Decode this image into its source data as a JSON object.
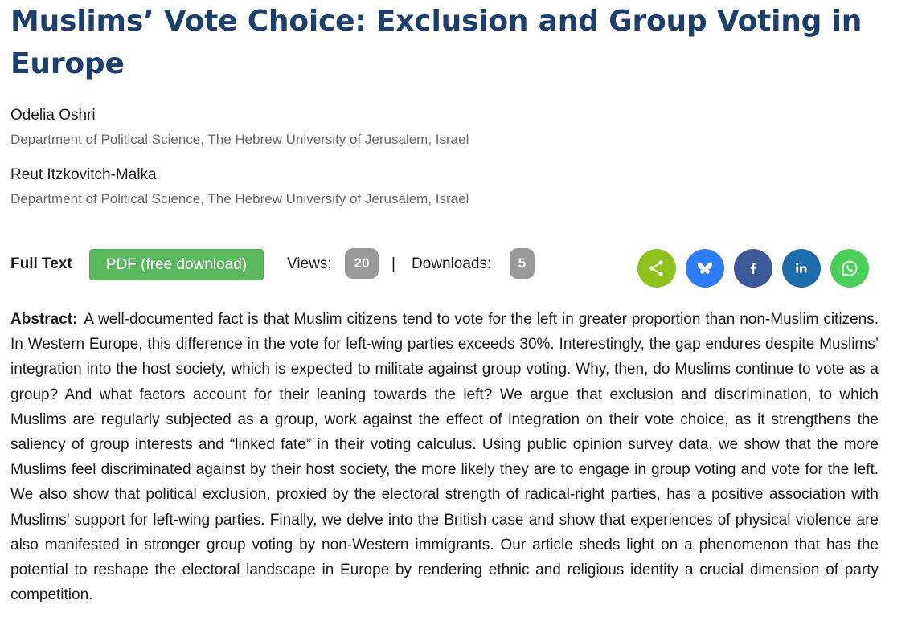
{
  "article": {
    "title": "Muslims’ Vote Choice: Exclusion and Group Voting in Europe",
    "authors": [
      {
        "name": "Odelia Oshri",
        "affiliation": "Department of Political Science, The Hebrew University of Jerusalem, Israel"
      },
      {
        "name": "Reut Itzkovitch-Malka",
        "affiliation": "Department of Political Science, The Hebrew University of Jerusalem, Israel"
      }
    ]
  },
  "fulltext": {
    "label": "Full Text",
    "pdf_button": "PDF (free download)",
    "views_label": "Views:",
    "views_count": "20",
    "separator": "|",
    "downloads_label": "Downloads:",
    "downloads_count": "5"
  },
  "share": {
    "buttons": [
      {
        "icon": "share-icon",
        "color": "#8ec21f"
      },
      {
        "icon": "bluesky-icon",
        "color": "#2f7df6"
      },
      {
        "icon": "facebook-icon",
        "color": "#3b5998"
      },
      {
        "icon": "linkedin-icon",
        "color": "#1e6cab"
      },
      {
        "icon": "whatsapp-icon",
        "color": "#4ccf5a"
      }
    ]
  },
  "abstract": {
    "label": "Abstract:",
    "text": "A well-documented fact is that Muslim citizens tend to vote for the left in greater proportion than non-Muslim citizens. In Western Europe, this difference in the vote for left-wing parties exceeds 30%. Interestingly, the gap endures despite Muslims’ integration into the host society, which is expected to militate against group voting. Why, then, do Muslims continue to vote as a group? And what factors account for their leaning towards the left? We argue that exclusion and discrimination, to which Muslims are regularly subjected as a group, work against the effect of integration on their vote choice, as it strengthens the saliency of group interests and “linked fate” in their voting calculus. Using public opinion survey data, we show that the more Muslims feel discriminated against by their host society, the more likely they are to engage in group voting and vote for the left. We also show that political exclusion, proxied by the electoral strength of radical-right parties, has a positive association with Muslims’ support for left-wing parties. Finally, we delve into the British case and show that experiences of physical violence are also manifested in stronger group voting by non-Western immigrants. Our article sheds light on a phenomenon that has the potential to reshape the electoral landscape in Europe by rendering ethnic and religious identity a crucial dimension of party competition."
  }
}
